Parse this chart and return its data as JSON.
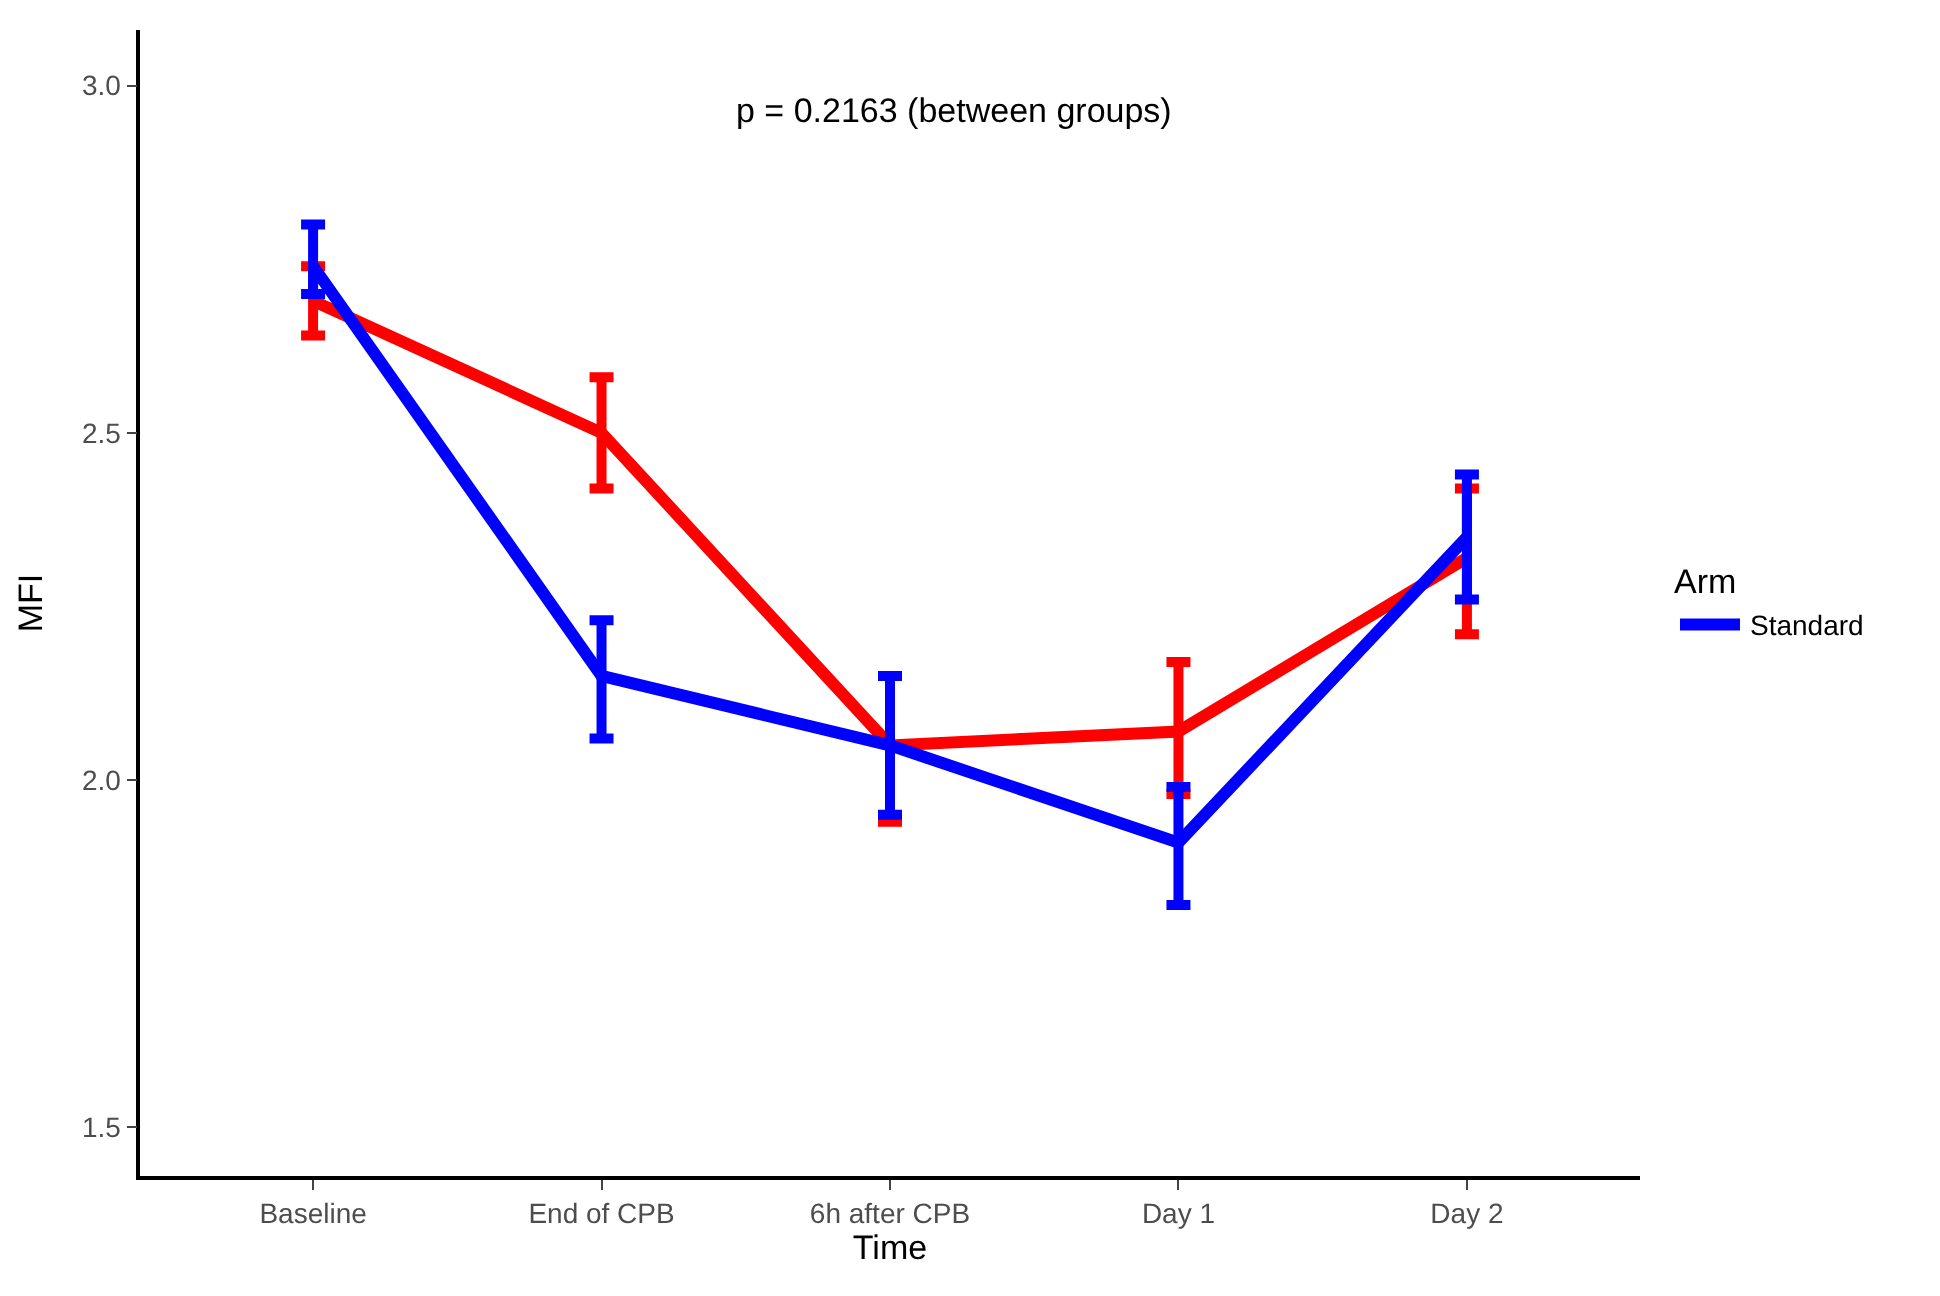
{
  "chart_data": {
    "type": "line",
    "xlabel": "Time",
    "ylabel": "MFI",
    "legend_title": "Arm",
    "legend": "right",
    "categories": [
      "Baseline",
      "End of CPB",
      "6h after CPB",
      "Day 1",
      "Day 2"
    ],
    "series": [
      {
        "color": "#ff0000",
        "values": [
          2.69,
          2.5,
          2.05,
          2.07,
          2.32
        ],
        "errors": [
          [
            2.64,
            2.74
          ],
          [
            2.42,
            2.58
          ],
          [
            1.94,
            2.15
          ],
          [
            1.98,
            2.17
          ],
          [
            2.21,
            2.42
          ]
        ]
      },
      {
        "name": "Standard",
        "color": "#0000ff",
        "values": [
          2.74,
          2.15,
          2.05,
          1.91,
          2.35
        ],
        "errors": [
          [
            2.7,
            2.8
          ],
          [
            2.06,
            2.23
          ],
          [
            1.95,
            2.15
          ],
          [
            1.82,
            1.99
          ],
          [
            2.26,
            2.44
          ]
        ]
      }
    ],
    "ylim": [
      1.43,
      3.08
    ],
    "yticks": [
      {
        "value": 1.5,
        "label": "1.5"
      },
      {
        "value": 2.0,
        "label": "2.0"
      },
      {
        "value": 2.5,
        "label": "2.5"
      },
      {
        "value": 3.0,
        "label": "3.0"
      }
    ],
    "grid": false,
    "marker": "none",
    "line_style": "solid",
    "annotations": [
      "p = 0.2163 (between groups)"
    ]
  }
}
